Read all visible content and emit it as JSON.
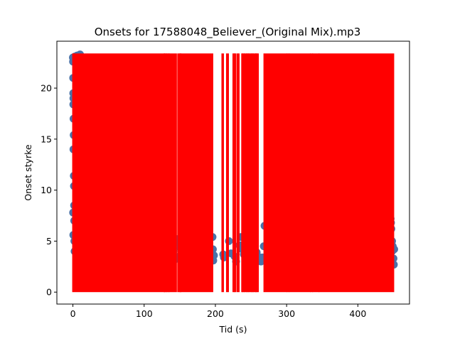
{
  "chart_data": {
    "type": "scatter",
    "title": "Onsets for 17588048_Believer_(Original Mix).mp3",
    "xlabel": "Tid (s)",
    "ylabel": "Onset styrke",
    "xlim": [
      -22.5,
      472.5
    ],
    "ylim": [
      -1.17,
      24.6
    ],
    "xticks": [
      0,
      100,
      200,
      300,
      400
    ],
    "yticks": [
      0,
      5,
      10,
      15,
      20
    ],
    "grid": false,
    "colors": {
      "points": "#4a72a8",
      "onset_lines": "#ff0000"
    },
    "onset_line_max": 23.4,
    "onset_segments": [
      [
        0,
        128
      ],
      [
        128.5,
        129
      ],
      [
        129.6,
        131.5
      ],
      [
        132,
        134.5
      ],
      [
        135,
        145
      ],
      [
        147.5,
        150
      ],
      [
        150.6,
        151.2
      ],
      [
        152,
        196
      ],
      [
        209.5,
        211
      ],
      [
        216,
        218
      ],
      [
        225,
        226.5
      ],
      [
        227.5,
        228.5
      ],
      [
        231,
        233
      ],
      [
        237.3,
        238
      ],
      [
        238.7,
        240.2
      ],
      [
        241,
        244
      ],
      [
        244.6,
        246.5
      ],
      [
        247.2,
        250
      ],
      [
        251,
        252.5
      ],
      [
        253,
        256
      ],
      [
        256.7,
        257.6
      ],
      [
        258.3,
        260
      ],
      [
        268.5,
        300
      ],
      [
        301,
        303
      ],
      [
        304,
        333
      ],
      [
        334,
        336
      ],
      [
        337,
        345
      ],
      [
        346,
        450
      ]
    ],
    "points": [
      [
        0,
        23.0
      ],
      [
        0.2,
        22.6
      ],
      [
        0.4,
        21.0
      ],
      [
        0.5,
        19.5
      ],
      [
        0.7,
        19.0
      ],
      [
        0.6,
        18.4
      ],
      [
        0.9,
        17.0
      ],
      [
        1.1,
        15.4
      ],
      [
        0.8,
        14.0
      ],
      [
        1.3,
        11.4
      ],
      [
        1.5,
        10.4
      ],
      [
        1.7,
        8.5
      ],
      [
        0.3,
        7.8
      ],
      [
        1.9,
        7.0
      ],
      [
        0.6,
        5.6
      ],
      [
        2.1,
        5.0
      ],
      [
        2.4,
        4.0
      ],
      [
        3.0,
        23.1
      ],
      [
        4.5,
        22.9
      ],
      [
        6.0,
        23.2
      ],
      [
        8.0,
        23.0
      ],
      [
        10.0,
        23.3
      ],
      [
        12.0,
        23.1
      ],
      [
        138,
        3.0
      ],
      [
        141,
        4.0
      ],
      [
        143,
        3.2
      ],
      [
        145.5,
        5.2
      ],
      [
        147,
        4.8
      ],
      [
        149,
        3.5
      ],
      [
        151,
        4.3
      ],
      [
        153,
        11.3
      ],
      [
        155,
        8.5
      ],
      [
        157,
        6.0
      ],
      [
        161,
        4.0
      ],
      [
        196,
        5.4
      ],
      [
        196.5,
        4.2
      ],
      [
        197,
        3.1
      ],
      [
        198,
        3.6
      ],
      [
        211,
        3.7
      ],
      [
        212,
        3.4
      ],
      [
        219,
        5.0
      ],
      [
        222,
        3.8
      ],
      [
        227,
        3.5
      ],
      [
        229,
        3.0
      ],
      [
        234,
        4.6
      ],
      [
        236,
        5.4
      ],
      [
        238,
        4.2
      ],
      [
        240,
        3.7
      ],
      [
        245,
        3.0
      ],
      [
        249,
        3.6
      ],
      [
        252,
        3.9
      ],
      [
        258,
        3.9
      ],
      [
        262,
        3.4
      ],
      [
        264,
        3.0
      ],
      [
        266,
        3.4
      ],
      [
        268,
        4.5
      ],
      [
        269,
        6.5
      ],
      [
        271,
        4.4
      ],
      [
        273,
        5.0
      ],
      [
        275,
        4.2
      ],
      [
        280,
        3.9
      ],
      [
        300,
        4.5
      ],
      [
        320,
        4.2
      ],
      [
        346,
        3.2
      ],
      [
        446,
        7.2
      ],
      [
        447,
        6.2
      ],
      [
        448,
        5.0
      ],
      [
        449,
        4.5
      ],
      [
        450,
        3.3
      ],
      [
        450.5,
        2.7
      ],
      [
        444,
        4.9
      ],
      [
        446.5,
        6.8
      ],
      [
        448,
        4.0
      ],
      [
        451,
        4.2
      ]
    ]
  }
}
